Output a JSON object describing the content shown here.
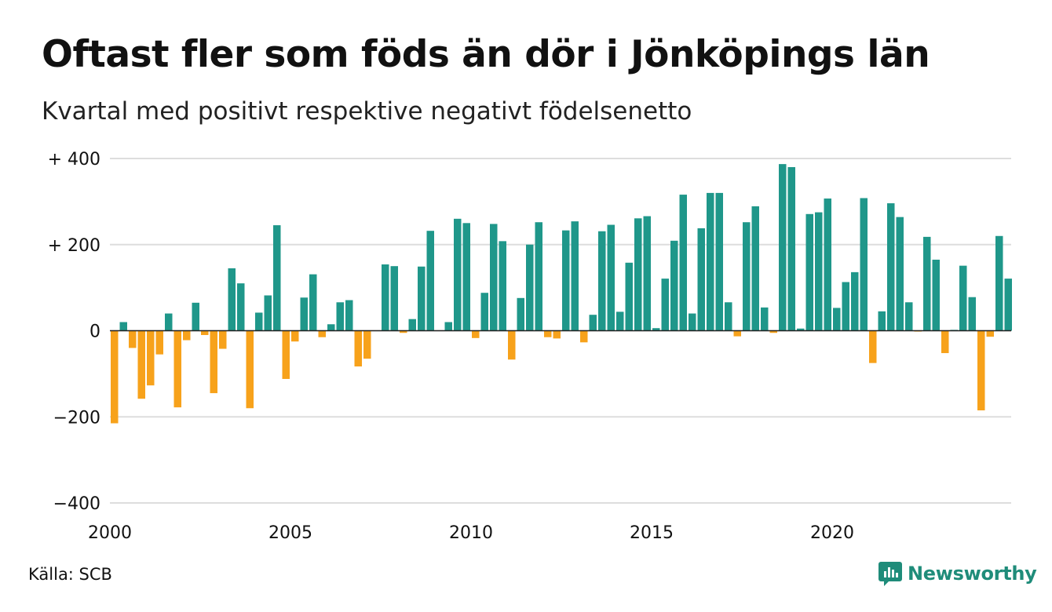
{
  "title": "Oftast fler som föds än dör i Jönköpings län",
  "subtitle": "Kvartal med positivt respektive negativt födelsenetto",
  "source": "Källa: SCB",
  "brand": {
    "name": "Newsworthy",
    "icon": "newsworthy-chart-bubble-icon"
  },
  "colors": {
    "positive": "#1f978a",
    "negative": "#f7a21b",
    "grid": "#dddddd",
    "brand": "#1f8c7a"
  },
  "chart_data": {
    "type": "bar",
    "title": "Oftast fler som föds än dör i Jönköpings län",
    "subtitle": "Kvartal med positivt respektive negativt födelsenetto",
    "xlabel": "",
    "ylabel": "",
    "ylim": [
      -400,
      400
    ],
    "yticks": [
      {
        "value": 400,
        "label": "+ 400"
      },
      {
        "value": 200,
        "label": "+ 200"
      },
      {
        "value": 0,
        "label": "0"
      },
      {
        "value": -200,
        "label": "−200"
      },
      {
        "value": -400,
        "label": "−400"
      }
    ],
    "xticks": [
      "2000",
      "2005",
      "2010",
      "2015",
      "2020"
    ],
    "grid": true,
    "start_year": 2000,
    "periods_per_year": 4,
    "values": [
      -215,
      20,
      -40,
      -158,
      -127,
      -55,
      40,
      -178,
      -22,
      65,
      -10,
      -145,
      -42,
      145,
      110,
      -180,
      42,
      82,
      245,
      -112,
      -25,
      77,
      131,
      -15,
      15,
      66,
      71,
      -83,
      -65,
      0,
      154,
      150,
      -5,
      27,
      149,
      232,
      0,
      20,
      260,
      250,
      -17,
      88,
      248,
      208,
      -67,
      76,
      200,
      252,
      -15,
      -18,
      233,
      254,
      -27,
      37,
      231,
      246,
      44,
      158,
      261,
      266,
      6,
      121,
      209,
      316,
      40,
      238,
      320,
      320,
      66,
      -13,
      252,
      289,
      54,
      -5,
      387,
      380,
      5,
      271,
      275,
      307,
      53,
      113,
      136,
      308,
      -75,
      45,
      296,
      264,
      66,
      -2,
      218,
      165,
      -52,
      2,
      151,
      78,
      -185,
      -14,
      220,
      121
    ]
  }
}
